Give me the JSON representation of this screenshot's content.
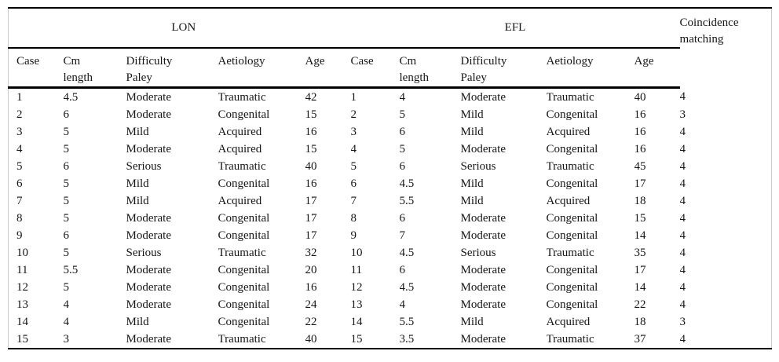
{
  "colors": {
    "rule": "#000000",
    "frame": "#cccccc",
    "text": "#161616",
    "background": "#ffffff"
  },
  "table": {
    "groups": [
      {
        "label": "LON",
        "colspan": 5
      },
      {
        "label": "EFL",
        "colspan": 5
      }
    ],
    "coincidence_header": "Coincidence\nmatching",
    "column_headers": [
      "Case",
      "Cm\nlength",
      "Difficulty\nPaley",
      "Aetiology",
      "Age",
      "Case",
      "Cm\nlength",
      "Difficulty\nPaley",
      "Aetiology",
      "Age"
    ],
    "rows": [
      [
        "1",
        "4.5",
        "Moderate",
        "Traumatic",
        "42",
        "1",
        "4",
        "Moderate",
        "Traumatic",
        "40",
        "4"
      ],
      [
        "2",
        "6",
        "Moderate",
        "Congenital",
        "15",
        "2",
        "5",
        "Mild",
        "Congenital",
        "16",
        "3"
      ],
      [
        "3",
        "5",
        "Mild",
        "Acquired",
        "16",
        "3",
        "6",
        "Mild",
        "Acquired",
        "16",
        "4"
      ],
      [
        "4",
        "5",
        "Moderate",
        "Acquired",
        "15",
        "4",
        "5",
        "Moderate",
        "Congenital",
        "16",
        "4"
      ],
      [
        "5",
        "6",
        "Serious",
        "Traumatic",
        "40",
        "5",
        "6",
        "Serious",
        "Traumatic",
        "45",
        "4"
      ],
      [
        "6",
        "5",
        "Mild",
        "Congenital",
        "16",
        "6",
        "4.5",
        "Mild",
        "Congenital",
        "17",
        "4"
      ],
      [
        "7",
        "5",
        "Mild",
        "Acquired",
        "17",
        "7",
        "5.5",
        "Mild",
        "Acquired",
        "18",
        "4"
      ],
      [
        "8",
        "5",
        "Moderate",
        "Congenital",
        "17",
        "8",
        "6",
        "Moderate",
        "Congenital",
        "15",
        "4"
      ],
      [
        "9",
        "6",
        "Moderate",
        "Congenital",
        "17",
        "9",
        "7",
        "Moderate",
        "Congenital",
        "14",
        "4"
      ],
      [
        "10",
        "5",
        "Serious",
        "Traumatic",
        "32",
        "10",
        "4.5",
        "Serious",
        "Traumatic",
        "35",
        "4"
      ],
      [
        "11",
        "5.5",
        "Moderate",
        "Congenital",
        "20",
        "11",
        "6",
        "Moderate",
        "Congenital",
        "17",
        "4"
      ],
      [
        "12",
        "5",
        "Moderate",
        "Congenital",
        "16",
        "12",
        "4.5",
        "Moderate",
        "Congenital",
        "14",
        "4"
      ],
      [
        "13",
        "4",
        "Moderate",
        "Congenital",
        "24",
        "13",
        "4",
        "Moderate",
        "Congenital",
        "22",
        "4"
      ],
      [
        "14",
        "4",
        "Mild",
        "Congenital",
        "22",
        "14",
        "5.5",
        "Mild",
        "Acquired",
        "18",
        "3"
      ],
      [
        "15",
        "3",
        "Moderate",
        "Traumatic",
        "40",
        "15",
        "3.5",
        "Moderate",
        "Traumatic",
        "37",
        "4"
      ]
    ]
  }
}
